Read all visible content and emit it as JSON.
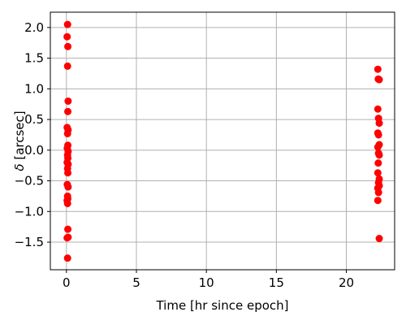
{
  "chart_data": {
    "type": "scatter",
    "title": "",
    "xlabel": "Time [hr since epoch]",
    "ylabel_symbol": "δ",
    "ylabel_unit": " [arcsec]",
    "xlim": [
      -1.15,
      23.45
    ],
    "ylim": [
      -1.95,
      2.25
    ],
    "xticks": [
      0,
      5,
      10,
      15,
      20
    ],
    "yticks": [
      -1.5,
      -1.0,
      -0.5,
      0.0,
      0.5,
      1.0,
      1.5,
      2.0
    ],
    "ytick_labels": [
      "−1.5",
      "−1.0",
      "−0.5",
      "0.0",
      "0.5",
      "1.0",
      "1.5",
      "2.0"
    ],
    "grid": true,
    "marker_color": "#ff0000",
    "series": [
      {
        "points": [
          {
            "x": 0.08,
            "y": 2.05
          },
          {
            "x": 0.05,
            "y": 1.85
          },
          {
            "x": 0.1,
            "y": 1.69
          },
          {
            "x": 0.08,
            "y": 1.37
          },
          {
            "x": 0.12,
            "y": 0.8
          },
          {
            "x": 0.1,
            "y": 0.63
          },
          {
            "x": 0.05,
            "y": 0.37
          },
          {
            "x": 0.12,
            "y": 0.33
          },
          {
            "x": 0.08,
            "y": 0.27
          },
          {
            "x": 0.1,
            "y": 0.08
          },
          {
            "x": 0.06,
            "y": 0.03
          },
          {
            "x": 0.12,
            "y": -0.02
          },
          {
            "x": 0.08,
            "y": -0.08
          },
          {
            "x": 0.1,
            "y": -0.13
          },
          {
            "x": 0.05,
            "y": -0.2
          },
          {
            "x": 0.12,
            "y": -0.23
          },
          {
            "x": 0.08,
            "y": -0.3
          },
          {
            "x": 0.1,
            "y": -0.37
          },
          {
            "x": 0.06,
            "y": -0.56
          },
          {
            "x": 0.12,
            "y": -0.6
          },
          {
            "x": 0.08,
            "y": -0.75
          },
          {
            "x": 0.1,
            "y": -0.79
          },
          {
            "x": 0.05,
            "y": -0.82
          },
          {
            "x": 0.08,
            "y": -0.87
          },
          {
            "x": 0.1,
            "y": -1.29
          },
          {
            "x": 0.05,
            "y": -1.43
          },
          {
            "x": 0.12,
            "y": -1.42
          },
          {
            "x": 0.08,
            "y": -1.76
          },
          {
            "x": 22.25,
            "y": 1.32
          },
          {
            "x": 22.28,
            "y": 1.16
          },
          {
            "x": 22.35,
            "y": 1.15
          },
          {
            "x": 22.25,
            "y": 0.67
          },
          {
            "x": 22.3,
            "y": 0.52
          },
          {
            "x": 22.35,
            "y": 0.44
          },
          {
            "x": 22.25,
            "y": 0.28
          },
          {
            "x": 22.3,
            "y": 0.25
          },
          {
            "x": 22.35,
            "y": 0.09
          },
          {
            "x": 22.25,
            "y": 0.05
          },
          {
            "x": 22.3,
            "y": -0.05
          },
          {
            "x": 22.35,
            "y": -0.08
          },
          {
            "x": 22.28,
            "y": -0.21
          },
          {
            "x": 22.25,
            "y": -0.37
          },
          {
            "x": 22.35,
            "y": -0.47
          },
          {
            "x": 22.3,
            "y": -0.53
          },
          {
            "x": 22.35,
            "y": -0.58
          },
          {
            "x": 22.25,
            "y": -0.62
          },
          {
            "x": 22.3,
            "y": -0.69
          },
          {
            "x": 22.25,
            "y": -0.82
          },
          {
            "x": 22.35,
            "y": -1.44
          }
        ]
      }
    ]
  }
}
